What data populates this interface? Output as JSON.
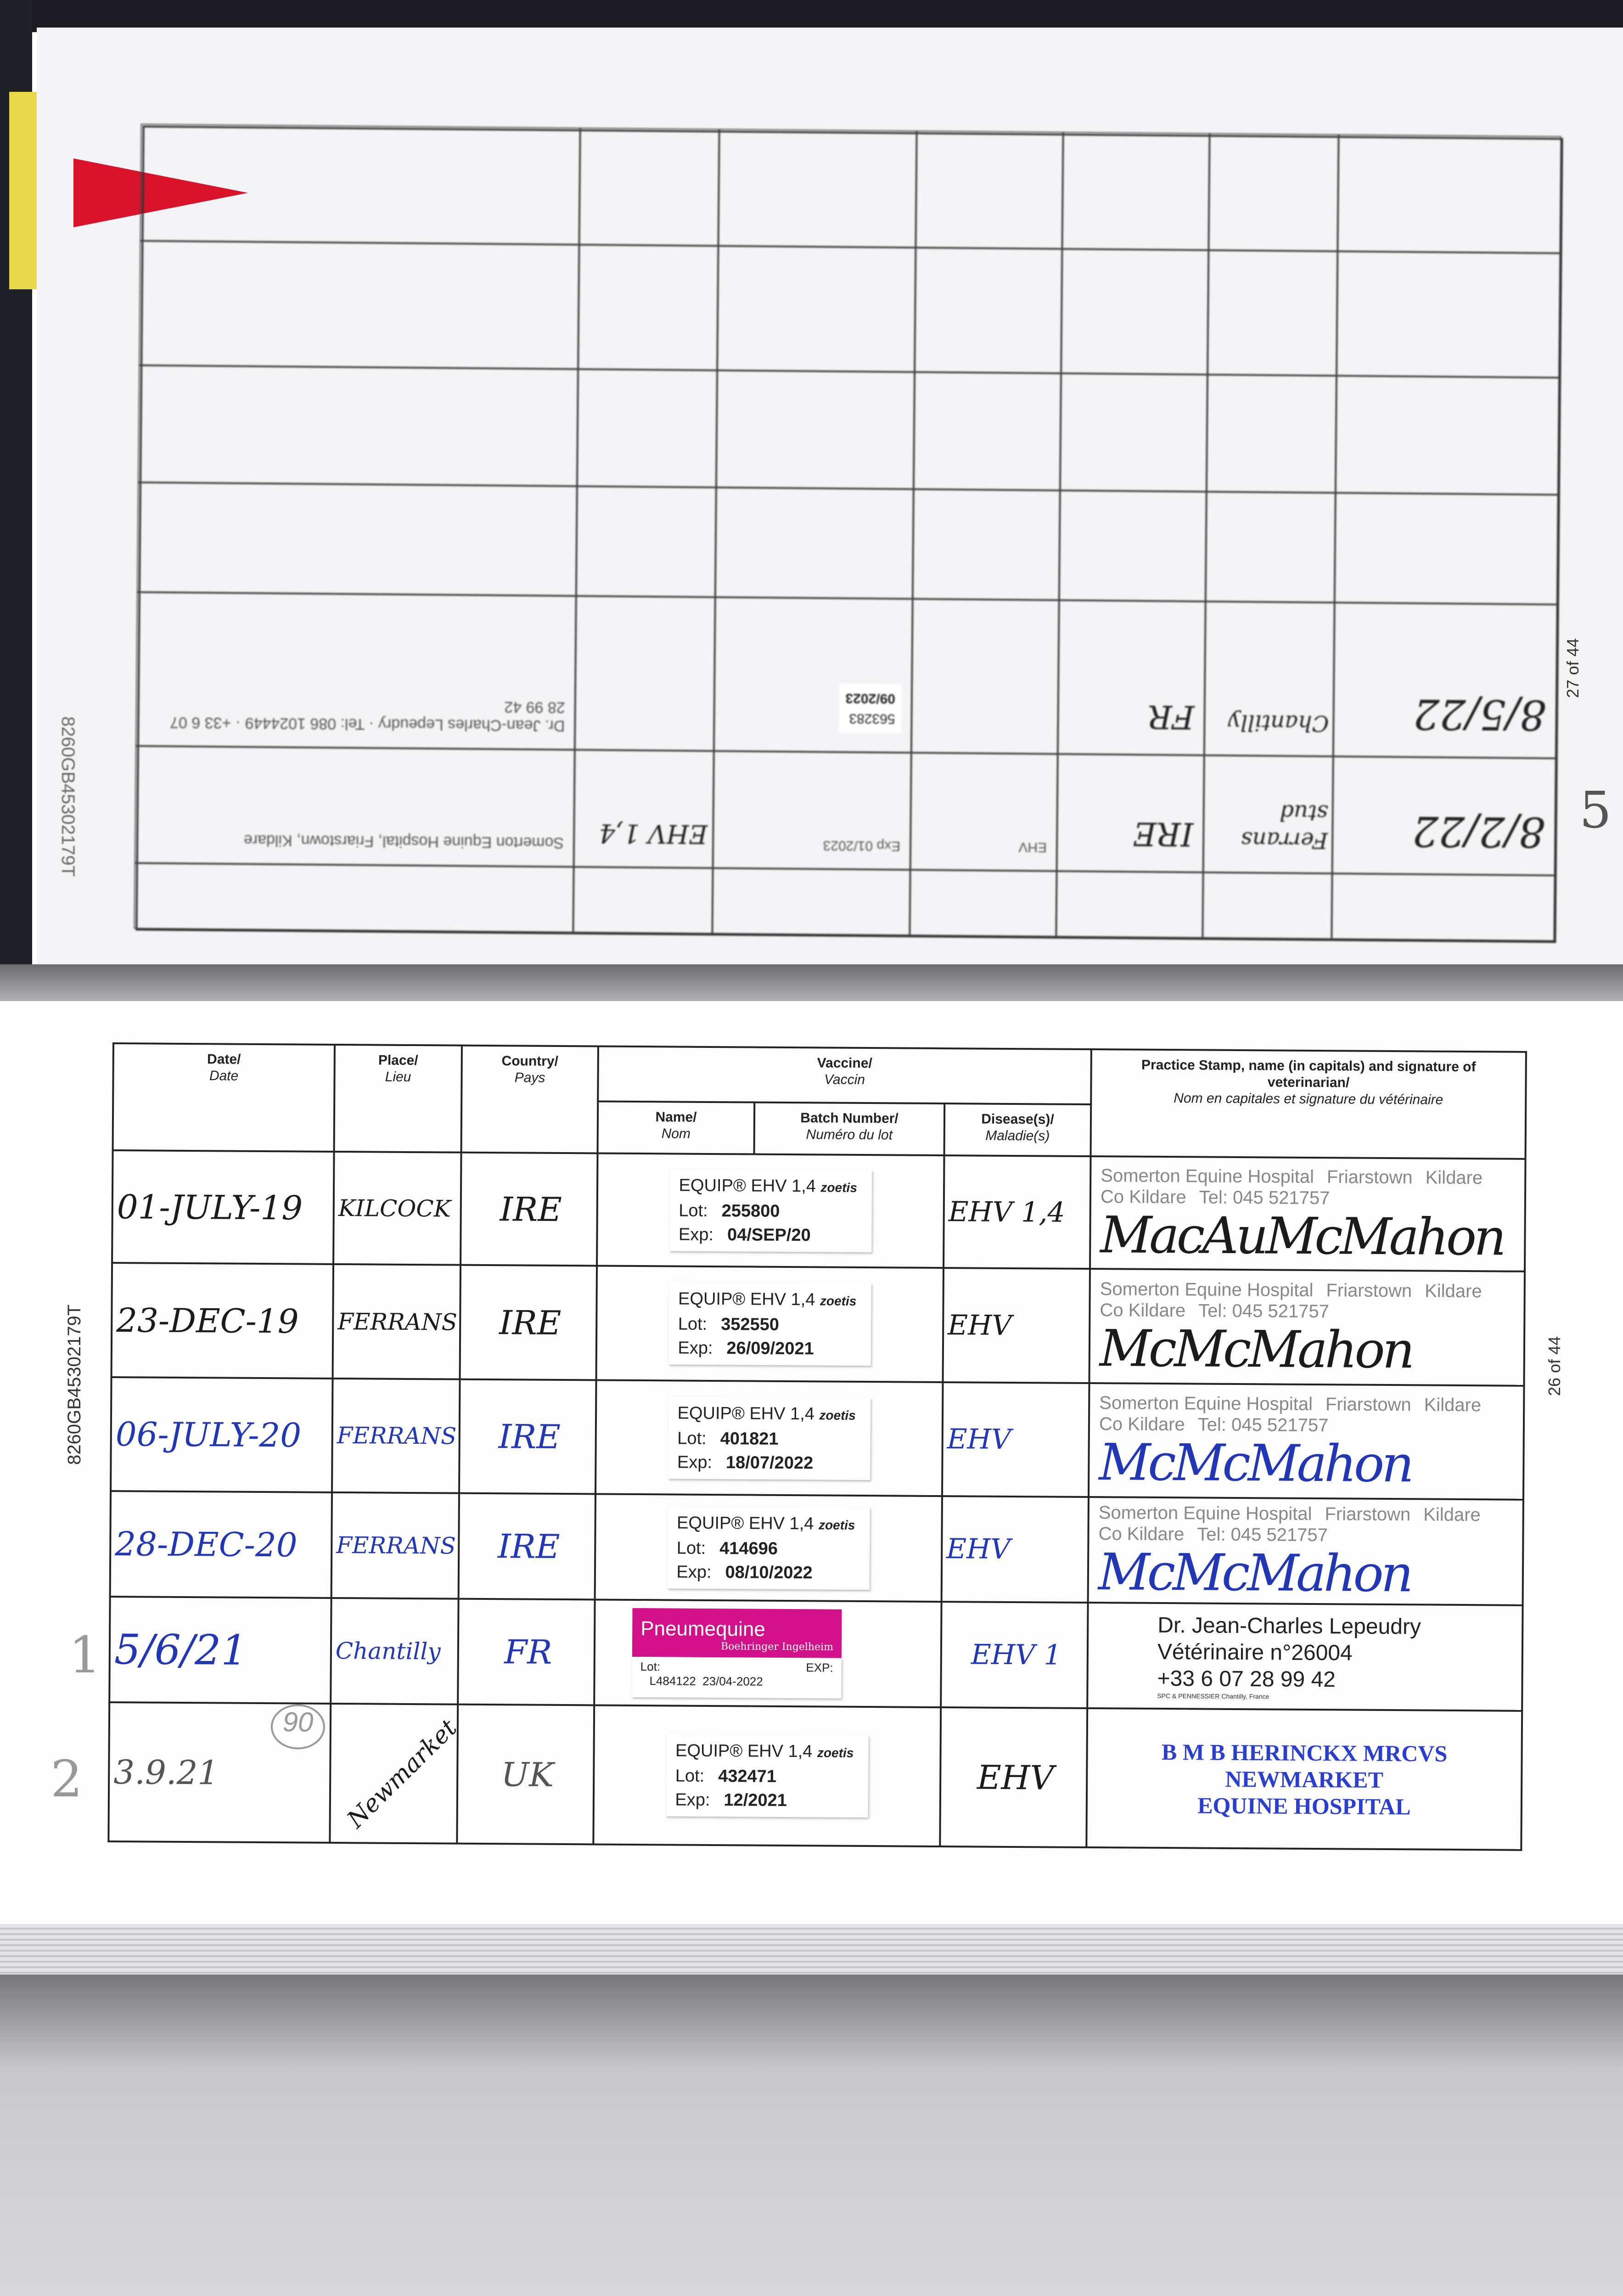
{
  "document_code": "8260GB45302179T",
  "upper_page": {
    "page_count": "27 of 44",
    "margin_mark": "5",
    "rows": [
      {
        "date": "8/2/22",
        "place": "Ferrans stud",
        "country": "IRE",
        "vaccine_name": "EHV",
        "batch": "Exp 01/2023",
        "disease": "EHV 1,4",
        "stamp": "Somerton Equine Hospital, Friarstown, Kildare"
      },
      {
        "date": "8/5/22",
        "place": "Chantilly",
        "country": "FR",
        "vaccine_name": "",
        "batch_lot": "563283",
        "batch_exp": "09/2023",
        "disease": "",
        "stamp": "Dr. Jean-Charles Lepeudry · Tel: 086 1024449 · +33 6 07 28 99 42"
      }
    ]
  },
  "lower_page": {
    "page_count": "26 of 44",
    "header": {
      "date": "Date/",
      "date_fr": "Date",
      "place": "Place/",
      "place_fr": "Lieu",
      "country": "Country/",
      "country_fr": "Pays",
      "vaccine": "Vaccine/",
      "vaccine_fr": "Vaccin",
      "name": "Name/",
      "name_fr": "Nom",
      "batch": "Batch Number/",
      "batch_fr": "Numéro du lot",
      "disease": "Disease(s)/",
      "disease_fr": "Maladie(s)",
      "stamp": "Practice Stamp, name (in capitals) and signature of veterinarian/",
      "stamp_fr": "Nom en capitales et signature du vétérinaire"
    },
    "rows": [
      {
        "date": "01-JULY-19",
        "place": "KILCOCK",
        "country": "IRE",
        "ink": "blk",
        "vaccine": "EQUIP® EHV 1,4",
        "maker": "zoetis",
        "lot_label": "Lot:",
        "lot": "255800",
        "exp_label": "Exp:",
        "exp": "04/SEP/20",
        "disease": "EHV 1,4",
        "stamp": [
          "Somerton Equine Hospital",
          "Friarstown",
          "Kildare",
          "Co Kildare",
          "Tel: 045 521757"
        ],
        "signature": "MacAuMcMahon"
      },
      {
        "date": "23-DEC-19",
        "place": "FERRANS",
        "country": "IRE",
        "ink": "blk",
        "vaccine": "EQUIP® EHV 1,4",
        "maker": "zoetis",
        "lot_label": "Lot:",
        "lot": "352550",
        "exp_label": "Exp:",
        "exp": "26/09/2021",
        "disease": "EHV",
        "stamp": [
          "Somerton Equine Hospital",
          "Friarstown",
          "Kildare",
          "Co Kildare",
          "Tel: 045 521757"
        ],
        "signature": "McMcMahon"
      },
      {
        "date": "06-JULY-20",
        "place": "FERRANS",
        "country": "IRE",
        "ink": "blu",
        "vaccine": "EQUIP® EHV 1,4",
        "maker": "zoetis",
        "lot_label": "Lot:",
        "lot": "401821",
        "exp_label": "Exp:",
        "exp": "18/07/2022",
        "disease": "EHV",
        "stamp": [
          "Somerton Equine Hospital",
          "Friarstown",
          "Kildare",
          "Co Kildare",
          "Tel: 045 521757"
        ],
        "signature": "McMcMahon"
      },
      {
        "date": "28-DEC-20",
        "place": "FERRANS",
        "country": "IRE",
        "ink": "blu",
        "vaccine": "EQUIP® EHV 1,4",
        "maker": "zoetis",
        "lot_label": "Lot:",
        "lot": "414696",
        "exp_label": "Exp:",
        "exp": "08/10/2022",
        "disease": "EHV",
        "stamp": [
          "Somerton Equine Hospital",
          "Friarstown",
          "Kildare",
          "Co Kildare",
          "Tel: 045 521757"
        ],
        "signature": "McMcMahon"
      }
    ],
    "row5": {
      "margin": "1",
      "date": "5/6/21",
      "place": "Chantilly",
      "country": "FR",
      "brand": "Pneumequine",
      "maker": "Boehringer Ingelheim",
      "lot_label": "Lot:",
      "exp_label": "EXP:",
      "lot": "L484122",
      "exp": "23/04-2022",
      "disease": "EHV 1",
      "vet_name": "Dr. Jean-Charles Lepeudry",
      "vet_number": "Vétérinaire n°26004",
      "vet_phone": "+33 6 07 28 99 42",
      "vet_logo": "SPC & PENNESSIER Chantilly, France"
    },
    "row6": {
      "margin": "2",
      "date": "3.9.21",
      "circled": "90",
      "place": "Newmarket",
      "country": "UK",
      "vaccine": "EQUIP® EHV 1,4",
      "maker": "zoetis",
      "lot_label": "Lot:",
      "lot": "432471",
      "exp_label": "Exp:",
      "exp": "12/2021",
      "disease": "EHV",
      "stamp": [
        "B M B HERINCKX MRCVS",
        "NEWMARKET",
        "EQUINE HOSPITAL"
      ]
    }
  },
  "colors": {
    "blue_ink": "#2137b5",
    "pneumequine_pink": "#d2108a",
    "flag_red": "#d8132b"
  }
}
